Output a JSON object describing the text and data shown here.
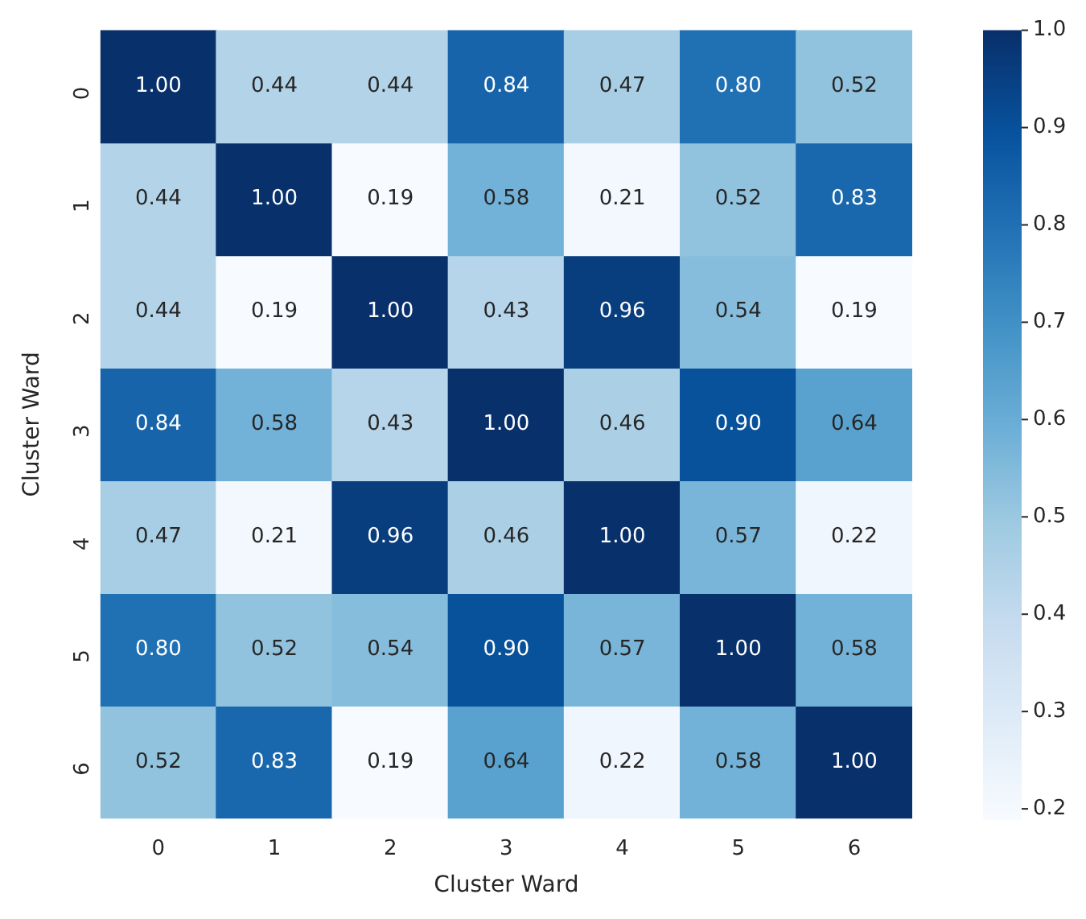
{
  "chart_data": {
    "type": "heatmap",
    "xlabel": "Cluster Ward",
    "ylabel": "Cluster Ward",
    "categories": [
      "0",
      "1",
      "2",
      "3",
      "4",
      "5",
      "6"
    ],
    "y_categories": [
      "0",
      "1",
      "2",
      "3",
      "4",
      "5",
      "6"
    ],
    "cells": [
      [
        1.0,
        0.44,
        0.44,
        0.84,
        0.47,
        0.8,
        0.52
      ],
      [
        0.44,
        1.0,
        0.19,
        0.58,
        0.21,
        0.52,
        0.83
      ],
      [
        0.44,
        0.19,
        1.0,
        0.43,
        0.96,
        0.54,
        0.19
      ],
      [
        0.84,
        0.58,
        0.43,
        1.0,
        0.46,
        0.9,
        0.64
      ],
      [
        0.47,
        0.21,
        0.96,
        0.46,
        1.0,
        0.57,
        0.22
      ],
      [
        0.8,
        0.52,
        0.54,
        0.9,
        0.57,
        1.0,
        0.58
      ],
      [
        0.52,
        0.83,
        0.19,
        0.64,
        0.22,
        0.58,
        1.0
      ]
    ],
    "cell_labels": [
      [
        "1.00",
        "0.44",
        "0.44",
        "0.84",
        "0.47",
        "0.80",
        "0.52"
      ],
      [
        "0.44",
        "1.00",
        "0.19",
        "0.58",
        "0.21",
        "0.52",
        "0.83"
      ],
      [
        "0.44",
        "0.19",
        "1.00",
        "0.43",
        "0.96",
        "0.54",
        "0.19"
      ],
      [
        "0.84",
        "0.58",
        "0.43",
        "1.00",
        "0.46",
        "0.90",
        "0.64"
      ],
      [
        "0.47",
        "0.21",
        "0.96",
        "0.46",
        "1.00",
        "0.57",
        "0.22"
      ],
      [
        "0.80",
        "0.52",
        "0.54",
        "0.90",
        "0.57",
        "1.00",
        "0.58"
      ],
      [
        "0.52",
        "0.83",
        "0.19",
        "0.64",
        "0.22",
        "0.58",
        "1.00"
      ]
    ],
    "clim": [
      0.19,
      1.0
    ],
    "cticks": [
      {
        "value": 0.2,
        "label": "0.2"
      },
      {
        "value": 0.3,
        "label": "0.3"
      },
      {
        "value": 0.4,
        "label": "0.4"
      },
      {
        "value": 0.5,
        "label": "0.5"
      },
      {
        "value": 0.6,
        "label": "0.6"
      },
      {
        "value": 0.7,
        "label": "0.7"
      },
      {
        "value": 0.8,
        "label": "0.8"
      },
      {
        "value": 0.9,
        "label": "0.9"
      },
      {
        "value": 1.0,
        "label": "1.0"
      }
    ],
    "data_labels": true
  }
}
